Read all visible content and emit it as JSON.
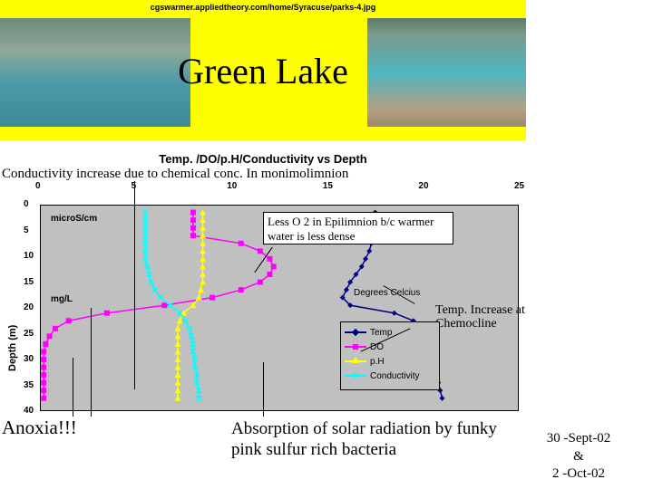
{
  "url_text": "cgswarmer.appliedtheory.com/home/Syracuse/parks-4.jpg",
  "title": "Green Lake",
  "chart_title": "Temp. /DO/p.H/Conductivity vs Depth",
  "conductivity_note": "Conductivity increase due to chemical conc. In monimolimnion",
  "y_axis_title": "Depth (m)",
  "micro_label": "microS/cm",
  "mgl_label": "mg/L",
  "deg_label": "Degrees Celcius",
  "box1_text": "Less O 2 in Epilimnion b/c warmer water is less dense",
  "box2_text": "Temp. Increase at Chemocline",
  "anoxia": "Anoxia!!!",
  "absorption": "Absorption of solar radiation by funky pink sulfur rich bacteria",
  "date1": "30 -Sept-02",
  "date_amp": "&",
  "date2": "2 -Oct-02",
  "x_ticks": [
    0,
    5,
    10,
    15,
    20,
    25
  ],
  "y_ticks": [
    0,
    5,
    10,
    15,
    20,
    25,
    30,
    35,
    40
  ],
  "legend_items": [
    {
      "label": "Temp",
      "color": "#000080",
      "marker": "diamond"
    },
    {
      "label": "DO",
      "color": "#ff00ff",
      "marker": "square"
    },
    {
      "label": "p.H",
      "color": "#ffff00",
      "marker": "triangle"
    },
    {
      "label": "Conductivity",
      "color": "#00ffff",
      "marker": "x"
    }
  ],
  "series": {
    "temp": {
      "color": "#000080",
      "marker": "diamond",
      "points": [
        [
          17.5,
          1.5
        ],
        [
          17.5,
          3
        ],
        [
          17.5,
          4.5
        ],
        [
          17.4,
          6
        ],
        [
          17.3,
          7.5
        ],
        [
          17.2,
          9
        ],
        [
          17.0,
          10.5
        ],
        [
          16.8,
          12
        ],
        [
          16.5,
          13.5
        ],
        [
          16.2,
          15
        ],
        [
          16.0,
          16.5
        ],
        [
          15.8,
          18
        ],
        [
          16.2,
          19.5
        ],
        [
          18.5,
          21
        ],
        [
          19.5,
          22.5
        ],
        [
          20.0,
          24
        ],
        [
          20.2,
          25.5
        ],
        [
          20.3,
          27
        ],
        [
          20.4,
          28.5
        ],
        [
          20.5,
          30
        ],
        [
          20.6,
          31.5
        ],
        [
          20.7,
          33
        ],
        [
          20.8,
          34.5
        ],
        [
          20.9,
          36
        ],
        [
          21.0,
          37.5
        ]
      ]
    },
    "do": {
      "color": "#ff00ff",
      "marker": "square",
      "points": [
        [
          8.0,
          1.5
        ],
        [
          8.0,
          3
        ],
        [
          8.0,
          4.5
        ],
        [
          8.0,
          6
        ],
        [
          10.5,
          7.5
        ],
        [
          11.5,
          9
        ],
        [
          12.0,
          10.5
        ],
        [
          12.2,
          12
        ],
        [
          12.0,
          13.5
        ],
        [
          11.5,
          15
        ],
        [
          10.5,
          16.5
        ],
        [
          9.0,
          18
        ],
        [
          6.5,
          19.5
        ],
        [
          3.5,
          21
        ],
        [
          1.5,
          22.5
        ],
        [
          0.8,
          24
        ],
        [
          0.5,
          25.5
        ],
        [
          0.3,
          27
        ],
        [
          0.2,
          28.5
        ],
        [
          0.2,
          30
        ],
        [
          0.2,
          31.5
        ],
        [
          0.2,
          33
        ],
        [
          0.2,
          34.5
        ],
        [
          0.2,
          36
        ],
        [
          0.2,
          37.5
        ]
      ]
    },
    "ph": {
      "color": "#ffff00",
      "marker": "triangle",
      "points": [
        [
          8.5,
          1.5
        ],
        [
          8.5,
          3
        ],
        [
          8.5,
          4.5
        ],
        [
          8.5,
          6
        ],
        [
          8.5,
          7.5
        ],
        [
          8.5,
          9
        ],
        [
          8.5,
          10.5
        ],
        [
          8.5,
          12
        ],
        [
          8.5,
          13.5
        ],
        [
          8.5,
          15
        ],
        [
          8.4,
          16.5
        ],
        [
          8.3,
          18
        ],
        [
          8.0,
          19.5
        ],
        [
          7.5,
          21
        ],
        [
          7.3,
          22.5
        ],
        [
          7.2,
          24
        ],
        [
          7.2,
          25.5
        ],
        [
          7.2,
          27
        ],
        [
          7.2,
          28.5
        ],
        [
          7.2,
          30
        ],
        [
          7.2,
          31.5
        ],
        [
          7.2,
          33
        ],
        [
          7.2,
          34.5
        ],
        [
          7.2,
          36
        ],
        [
          7.2,
          37.5
        ]
      ]
    },
    "cond": {
      "color": "#00ffff",
      "marker": "x",
      "points": [
        [
          5.5,
          1.5
        ],
        [
          5.5,
          3
        ],
        [
          5.5,
          4.5
        ],
        [
          5.5,
          6
        ],
        [
          5.5,
          7.5
        ],
        [
          5.5,
          9
        ],
        [
          5.5,
          10.5
        ],
        [
          5.6,
          12
        ],
        [
          5.7,
          13.5
        ],
        [
          5.8,
          15
        ],
        [
          6.0,
          16.5
        ],
        [
          6.3,
          18
        ],
        [
          6.8,
          19.5
        ],
        [
          7.3,
          21
        ],
        [
          7.6,
          22.5
        ],
        [
          7.8,
          24
        ],
        [
          7.9,
          25.5
        ],
        [
          8.0,
          27
        ],
        [
          8.0,
          28.5
        ],
        [
          8.1,
          30
        ],
        [
          8.1,
          31.5
        ],
        [
          8.2,
          33
        ],
        [
          8.2,
          34.5
        ],
        [
          8.3,
          36
        ],
        [
          8.3,
          37.5
        ]
      ]
    }
  },
  "xlim": [
    0,
    25
  ],
  "ylim": [
    0,
    40
  ],
  "plot_bg": "#c0c0c0",
  "page_bg": "#ffffff",
  "banner_bg": "#ffff00"
}
